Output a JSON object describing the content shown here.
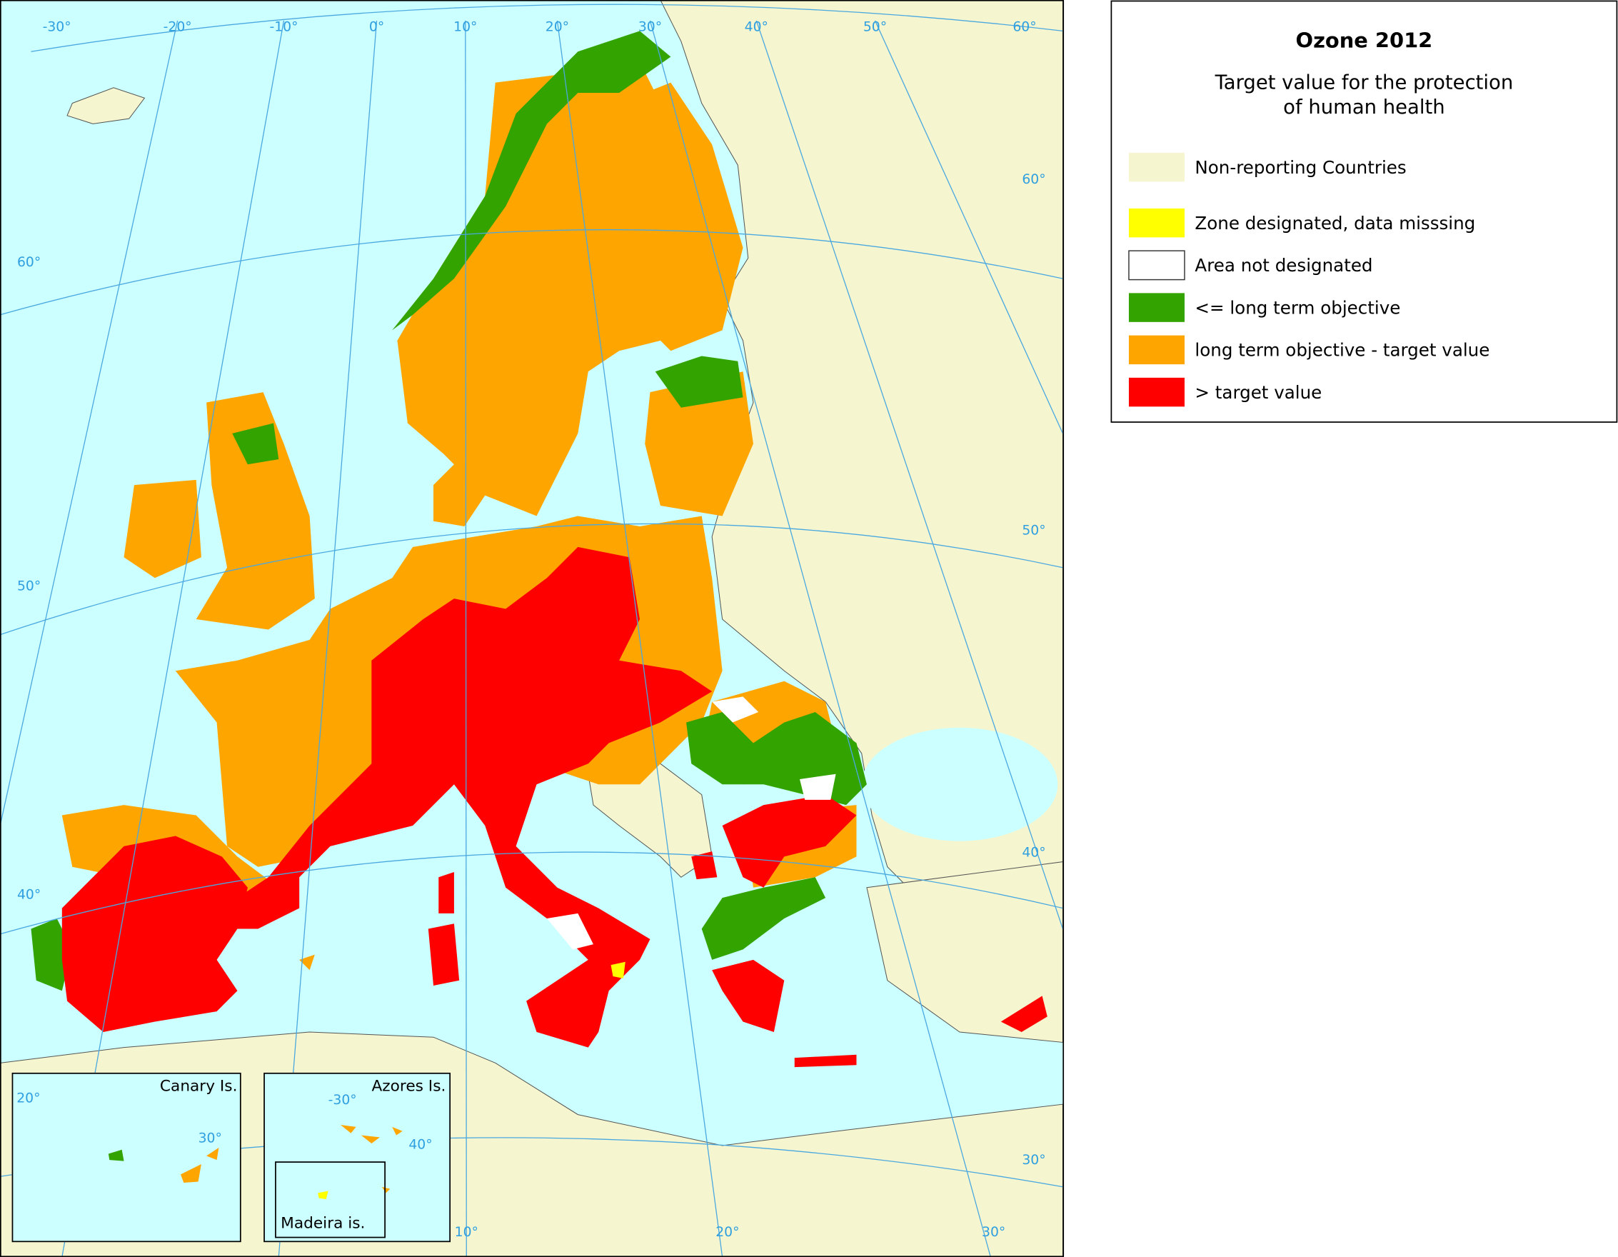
{
  "legend": {
    "title": "Ozone 2012",
    "subtitle": [
      "Target value for the protection",
      "of human health"
    ],
    "items": [
      {
        "label": "Non-reporting Countries",
        "color": "#f5f5cf"
      },
      {
        "label": "Zone designated, data misssing",
        "color": "#ffff00"
      },
      {
        "label": "Area not designated",
        "color": "#ffffff"
      },
      {
        "label": "<= long term objective",
        "color": "#33a300"
      },
      {
        "label": "long term objective - target value",
        "color": "#ffa500"
      },
      {
        "label": "> target value",
        "color": "#ff0000"
      }
    ]
  },
  "map": {
    "graticule_labels": [
      "-30°",
      "-20°",
      "-10°",
      "0°",
      "10°",
      "20°",
      "30°",
      "40°",
      "50°",
      "60°",
      "60°",
      "50°",
      "40°",
      "60°",
      "50°",
      "40°",
      "30°",
      "10°",
      "20°",
      "30°"
    ]
  },
  "insets": [
    {
      "label": "Canary Is.",
      "graticule_labels": [
        "20°",
        "30°"
      ]
    },
    {
      "label": "Azores Is.",
      "graticule_labels": [
        "-30°",
        "40°"
      ]
    },
    {
      "label": "Madeira is."
    }
  ]
}
